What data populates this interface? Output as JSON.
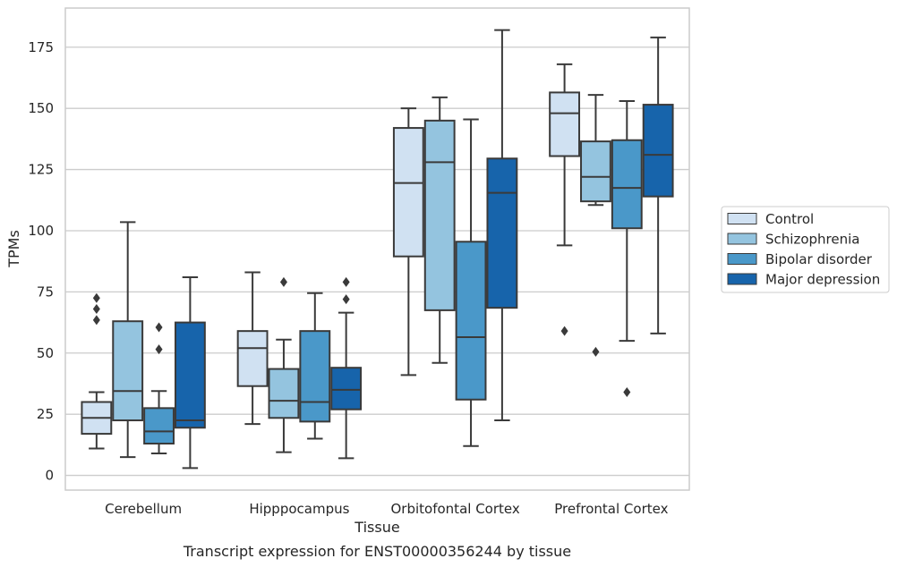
{
  "caption": "Transcript expression for ENST00000356244 by tissue",
  "chart_data": {
    "type": "box",
    "xlabel": "Tissue",
    "ylabel": "TPMs",
    "ylim": [
      -6,
      191
    ],
    "yticks": [
      0,
      25,
      50,
      75,
      100,
      125,
      150,
      175
    ],
    "grid": "horizontal",
    "legend_position": "right",
    "categories": [
      "Cerebellum",
      "Hipppocampus",
      "Orbitofontal Cortex",
      "Prefrontal Cortex"
    ],
    "series": [
      {
        "name": "Control",
        "color": "#d0e1f2",
        "boxes": [
          {
            "whisker_low": 11,
            "q1": 17,
            "median": 23.5,
            "q3": 30,
            "whisker_high": 34,
            "outliers": [
              63.5,
              68,
              72.5
            ]
          },
          {
            "whisker_low": 21,
            "q1": 36.5,
            "median": 52,
            "q3": 59,
            "whisker_high": 83,
            "outliers": []
          },
          {
            "whisker_low": 41,
            "q1": 89.5,
            "median": 119.5,
            "q3": 142,
            "whisker_high": 150,
            "outliers": []
          },
          {
            "whisker_low": 94,
            "q1": 130.5,
            "median": 148,
            "q3": 156.5,
            "whisker_high": 168,
            "outliers": [
              59
            ]
          }
        ]
      },
      {
        "name": "Schizophrenia",
        "color": "#94c4df",
        "boxes": [
          {
            "whisker_low": 7.5,
            "q1": 22.5,
            "median": 34.5,
            "q3": 63,
            "whisker_high": 103.5,
            "outliers": []
          },
          {
            "whisker_low": 9.5,
            "q1": 23.5,
            "median": 30.5,
            "q3": 43.5,
            "whisker_high": 55.5,
            "outliers": [
              79
            ]
          },
          {
            "whisker_low": 46,
            "q1": 67.5,
            "median": 128,
            "q3": 145,
            "whisker_high": 154.5,
            "outliers": []
          },
          {
            "whisker_low": 110.5,
            "q1": 112,
            "median": 122,
            "q3": 136.5,
            "whisker_high": 155.5,
            "outliers": [
              50.5
            ]
          }
        ]
      },
      {
        "name": "Bipolar disorder",
        "color": "#4a98c9",
        "boxes": [
          {
            "whisker_low": 9,
            "q1": 13,
            "median": 18,
            "q3": 27.5,
            "whisker_high": 34.5,
            "outliers": [
              51.5,
              60.5
            ]
          },
          {
            "whisker_low": 15,
            "q1": 22,
            "median": 30,
            "q3": 59,
            "whisker_high": 74.5,
            "outliers": []
          },
          {
            "whisker_low": 12,
            "q1": 31,
            "median": 56.5,
            "q3": 95.5,
            "whisker_high": 145.5,
            "outliers": []
          },
          {
            "whisker_low": 55,
            "q1": 101,
            "median": 117.5,
            "q3": 137,
            "whisker_high": 153,
            "outliers": [
              34
            ]
          }
        ]
      },
      {
        "name": "Major depression",
        "color": "#1764ab",
        "boxes": [
          {
            "whisker_low": 3,
            "q1": 19.5,
            "median": 22.5,
            "q3": 62.5,
            "whisker_high": 81,
            "outliers": []
          },
          {
            "whisker_low": 7,
            "q1": 27,
            "median": 35,
            "q3": 44,
            "whisker_high": 66.5,
            "outliers": [
              72,
              79
            ]
          },
          {
            "whisker_low": 22.5,
            "q1": 68.5,
            "median": 115.5,
            "q3": 129.5,
            "whisker_high": 182,
            "outliers": []
          },
          {
            "whisker_low": 58,
            "q1": 114,
            "median": 131,
            "q3": 151.5,
            "whisker_high": 179,
            "outliers": []
          }
        ]
      }
    ]
  }
}
